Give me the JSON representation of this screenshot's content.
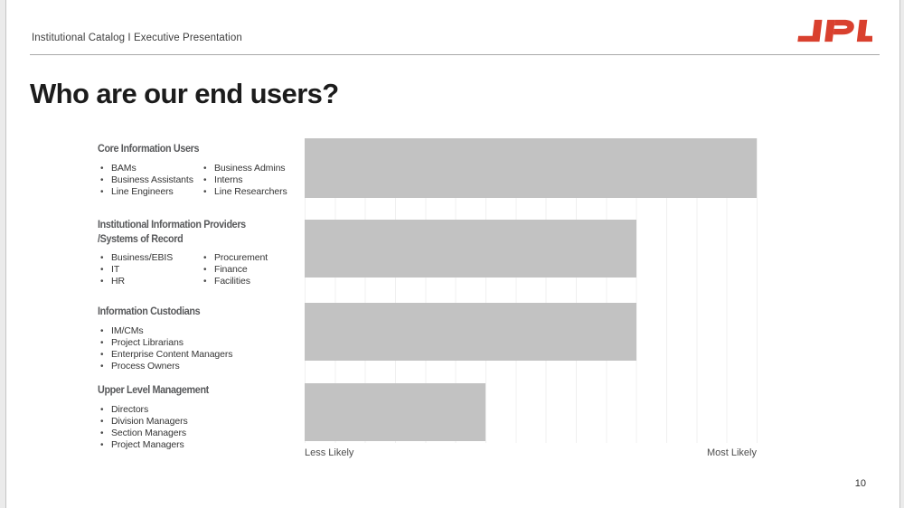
{
  "slide": {
    "breadcrumb": "Institutional Catalog I Executive Presentation",
    "title": "Who are our end users?",
    "page_number": "10",
    "logo_text": "JPL",
    "logo_color": "#d9402e"
  },
  "user_groups": [
    {
      "heading_lines": [
        "Core Information Users"
      ],
      "bullet_columns": [
        [
          "BAMs",
          "Business Assistants",
          "Line Engineers"
        ],
        [
          "Business Admins",
          "Interns",
          "Line Researchers"
        ]
      ]
    },
    {
      "heading_lines": [
        "Institutional Information Providers",
        "/Systems of Record"
      ],
      "bullet_columns": [
        [
          "Business/EBIS",
          "IT",
          "HR"
        ],
        [
          "Procurement",
          "Finance",
          "Facilities"
        ]
      ]
    },
    {
      "heading_lines": [
        "Information Custodians"
      ],
      "bullet_columns": [
        [
          "IM/CMs",
          "Project Librarians",
          "Enterprise Content Managers",
          "Process Owners"
        ]
      ]
    },
    {
      "heading_lines": [
        "Upper Level Management"
      ],
      "bullet_columns": [
        [
          "Directors",
          "Division Managers",
          "Section Managers",
          "Project Managers"
        ]
      ]
    }
  ],
  "chart_data": {
    "type": "bar",
    "orientation": "horizontal",
    "categories": [
      "Core Information Users",
      "Institutional Information Providers /Systems of Record",
      "Information Custodians",
      "Upper Level Management"
    ],
    "values": [
      100,
      73.3,
      73.3,
      40
    ],
    "value_units": "percent of axis width (likelihood scale, unlabeled)",
    "x_axis": {
      "left_label": "Less Likely",
      "right_label": "Most Likely"
    },
    "gridlines": {
      "style": "vertical",
      "count": 16,
      "color": "#f0f0f0"
    },
    "bar_color": "#c2c2c2",
    "title": "",
    "legend": null
  }
}
